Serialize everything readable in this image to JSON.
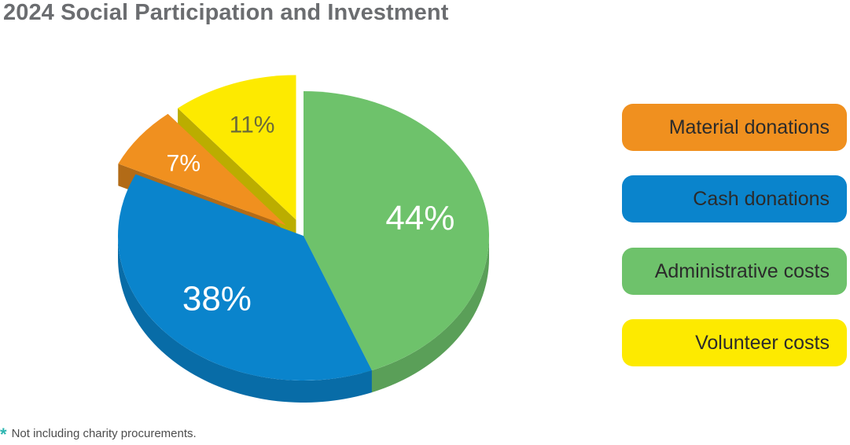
{
  "title": "2024 Social Participation and Investment",
  "chart_data": {
    "type": "pie",
    "title": "2024 Social Participation and Investment",
    "slices": [
      {
        "label": "Administrative costs",
        "value": 44,
        "value_label": "44%",
        "color": "#6ec26b"
      },
      {
        "label": "Cash donations",
        "value": 38,
        "value_label": "38%",
        "color": "#0a84cc"
      },
      {
        "label": "Material donations",
        "value": 7,
        "value_label": "7%",
        "color": "#f0901f"
      },
      {
        "label": "Volunteer costs",
        "value": 11,
        "value_label": "11%",
        "color": "#fdea00"
      }
    ],
    "exploded": [
      "Material donations",
      "Volunteer costs"
    ],
    "style": "3d",
    "legend_position": "right"
  },
  "legend": [
    {
      "label": "Material donations",
      "color": "#f0901f"
    },
    {
      "label": "Cash donations",
      "color": "#0a84cc"
    },
    {
      "label": "Administrative costs",
      "color": "#6ec26b"
    },
    {
      "label": "Volunteer costs",
      "color": "#fdea00"
    }
  ],
  "footnote": {
    "marker": "*",
    "text": "Not including charity procurements."
  }
}
